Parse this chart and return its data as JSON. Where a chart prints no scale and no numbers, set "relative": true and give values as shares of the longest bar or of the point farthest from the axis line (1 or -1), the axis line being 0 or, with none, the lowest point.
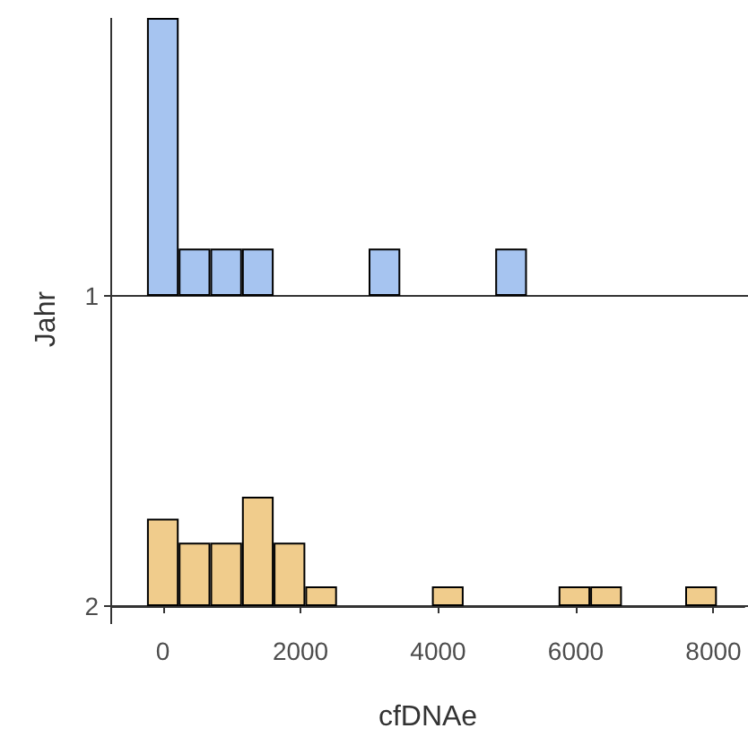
{
  "chart_data": [
    {
      "type": "bar",
      "relative": true,
      "ylabel": "Jahr",
      "annotations": [
        "1"
      ],
      "color": "#a6c4f0",
      "x": [
        0,
        460,
        920,
        1380,
        1840,
        2300,
        2760,
        3220,
        3680,
        4140,
        4600,
        5060,
        5520,
        5980,
        6440,
        6900,
        7360,
        7820
      ],
      "values": [
        1,
        0.17,
        0.17,
        0.17,
        0,
        0,
        0,
        0.17,
        0,
        0,
        0,
        0.17,
        0,
        0,
        0,
        0,
        0,
        0
      ],
      "xlim": [
        -750,
        8450
      ],
      "xticks": [
        0,
        2000,
        4000,
        6000,
        8000
      ],
      "tick_labels": false
    },
    {
      "type": "bar",
      "relative": true,
      "xlabel": "cfDNAe",
      "annotations": [
        "2"
      ],
      "color": "#f0cc8c",
      "x": [
        0,
        460,
        920,
        1380,
        1840,
        2300,
        2760,
        3220,
        3680,
        4140,
        4600,
        5060,
        5520,
        5980,
        6440,
        6900,
        7360,
        7820
      ],
      "values": [
        0.8,
        0.58,
        0.58,
        1,
        0.58,
        0.18,
        0,
        0,
        0,
        0.18,
        0,
        0,
        0,
        0.18,
        0.18,
        0,
        0,
        0.18
      ],
      "xlim": [
        -750,
        8450
      ],
      "xticks": [
        0,
        2000,
        4000,
        6000,
        8000
      ],
      "tick_labels": "x"
    }
  ]
}
